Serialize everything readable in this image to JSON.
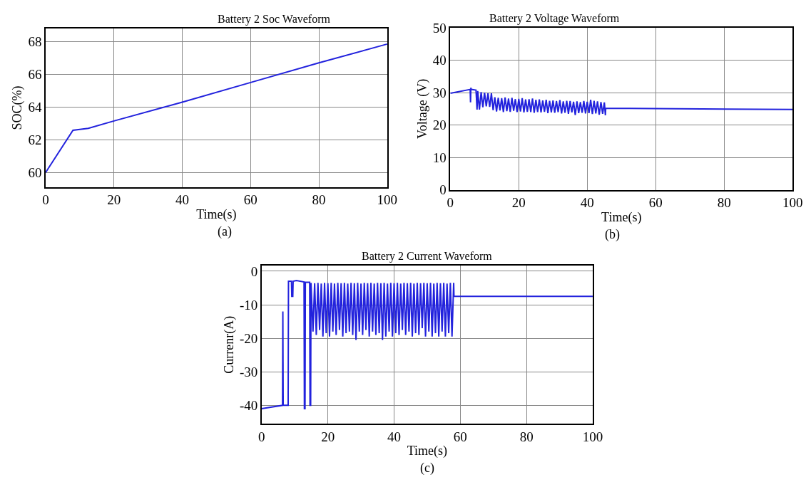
{
  "chart_data": [
    {
      "type": "line",
      "title": "Battery 2 Soc Waveform",
      "xlabel": "Time(s)",
      "ylabel": "SOC(%)",
      "annotations": [
        "(a)"
      ],
      "xlim": [
        0,
        100
      ],
      "ylim": [
        59.1,
        68.8
      ],
      "xticks": [
        0,
        20,
        40,
        60,
        80,
        100
      ],
      "yticks": [
        60,
        62,
        64,
        66,
        68
      ],
      "grid": true,
      "series": [
        {
          "color": "#2222dd",
          "x": [
            0,
            8,
            12.5,
            20,
            40,
            60,
            80,
            100
          ],
          "values": [
            60,
            62.58,
            62.7,
            63.15,
            64.3,
            65.5,
            66.7,
            67.85
          ]
        }
      ]
    },
    {
      "type": "line",
      "title": "Battery 2 Voltage Waveform",
      "xlabel": "Time(s)",
      "ylabel": "Voltage (V)",
      "annotations": [
        "(b)"
      ],
      "xlim": [
        0,
        100
      ],
      "ylim": [
        0,
        50
      ],
      "xticks": [
        0,
        20,
        40,
        60,
        80,
        100
      ],
      "yticks": [
        0,
        10,
        20,
        30,
        40,
        50
      ],
      "grid": true,
      "series": [
        {
          "color": "#2222dd",
          "x": [
            0,
            5.8,
            5.9,
            6,
            6.1,
            7.5,
            7.8,
            8,
            8.5,
            9,
            9.5,
            10,
            10.5,
            11,
            11.5,
            12,
            12.5,
            13,
            13.5,
            14,
            14.5,
            15,
            15.5,
            16,
            16.5,
            17,
            17.5,
            18,
            18.5,
            19,
            19.5,
            20,
            20.5,
            21,
            21.5,
            22,
            22.5,
            23,
            23.5,
            24,
            24.5,
            25,
            25.5,
            26,
            26.5,
            27,
            27.5,
            28,
            28.5,
            29,
            29.5,
            30,
            30.5,
            31,
            31.5,
            32,
            32.5,
            33,
            33.5,
            34,
            34.5,
            35,
            35.5,
            36,
            36.5,
            37,
            37.5,
            38,
            38.5,
            39,
            39.5,
            40,
            40.5,
            41,
            41.5,
            42,
            42.5,
            43,
            43.5,
            44,
            44.5,
            45,
            45.3,
            45.4,
            100
          ],
          "values": [
            29.8,
            31,
            27,
            31.5,
            31,
            30.8,
            24.8,
            30.5,
            24.8,
            30.2,
            25.5,
            30,
            25.8,
            29.8,
            25.6,
            29.8,
            24.6,
            28.6,
            24.2,
            28.4,
            24.5,
            28.3,
            24,
            28.5,
            24.3,
            28.2,
            24.1,
            28.4,
            24.4,
            28,
            24,
            28.1,
            24.2,
            28.3,
            23.9,
            27.9,
            24.1,
            28,
            24,
            28.2,
            23.8,
            27.8,
            24,
            27.9,
            23.9,
            27.6,
            24.1,
            27.8,
            23.7,
            27.5,
            23.9,
            27.6,
            23.8,
            27.4,
            24,
            27.7,
            23.6,
            27.3,
            23.8,
            27.5,
            23.5,
            27.4,
            23.9,
            27.2,
            23.1,
            27.3,
            23.7,
            27.1,
            23.8,
            27.4,
            23.6,
            27.2,
            23.7,
            27.8,
            23.4,
            27.5,
            23.6,
            27.3,
            23.2,
            27.1,
            23.5,
            27,
            23,
            25.2,
            24.8
          ]
        }
      ]
    },
    {
      "type": "line",
      "title": "Battery 2 Current Waveform",
      "xlabel": "Time(s)",
      "ylabel": "Currenr(A)",
      "annotations": [
        "(c)"
      ],
      "xlim": [
        0,
        100
      ],
      "ylim": [
        -45.5,
        1.6
      ],
      "xticks": [
        0,
        20,
        40,
        60,
        80,
        100
      ],
      "yticks": [
        -40,
        -30,
        -20,
        -10,
        0
      ],
      "grid": true,
      "series": [
        {
          "color": "#2222dd",
          "x": [
            0,
            6.3,
            6.4,
            6.5,
            8,
            8.1,
            9,
            9.1,
            9.4,
            9.5,
            10.5,
            12.8,
            12.9,
            13.1,
            13.2,
            14.5,
            14.6,
            14.8,
            14.9,
            15.5,
            16,
            16.5,
            17,
            17.5,
            18,
            18.5,
            19,
            19.5,
            20,
            20.5,
            21,
            21.5,
            22,
            22.5,
            23,
            23.5,
            24,
            24.5,
            25,
            25.5,
            26,
            26.5,
            27,
            27.5,
            28,
            28.5,
            29,
            29.5,
            30,
            30.5,
            31,
            31.5,
            32,
            32.5,
            33,
            33.5,
            34,
            34.5,
            35,
            35.5,
            36,
            36.5,
            37,
            37.5,
            38,
            38.5,
            39,
            39.5,
            40,
            40.5,
            41,
            41.5,
            42,
            42.5,
            43,
            43.5,
            44,
            44.5,
            45,
            45.5,
            46,
            46.5,
            47,
            47.5,
            48,
            48.5,
            49,
            49.5,
            50,
            50.5,
            51,
            51.5,
            52,
            52.5,
            53,
            53.5,
            54,
            54.5,
            55,
            55.5,
            56,
            56.5,
            57,
            57.5,
            58,
            58.1,
            100
          ],
          "values": [
            -41,
            -40,
            -12,
            -40,
            -40,
            -3,
            -3,
            -7.5,
            -7.5,
            -3,
            -2.8,
            -3.2,
            -41,
            -41,
            -3.3,
            -3.3,
            -40,
            -40,
            -3.5,
            -18,
            -3.6,
            -19,
            -3.5,
            -17.5,
            -3.7,
            -19.5,
            -3.5,
            -18.5,
            -3.6,
            -19.5,
            -3.5,
            -18,
            -3.7,
            -19,
            -3.5,
            -17.5,
            -3.6,
            -19.5,
            -3.5,
            -18.5,
            -3.7,
            -18,
            -3.5,
            -19,
            -3.6,
            -20.5,
            -3.5,
            -18,
            -3.7,
            -19,
            -3.5,
            -17.5,
            -3.6,
            -19.5,
            -3.5,
            -18,
            -3.7,
            -19,
            -3.5,
            -18.5,
            -3.6,
            -20.5,
            -3.5,
            -19.5,
            -3.7,
            -18,
            -3.5,
            -19.5,
            -3.6,
            -18.5,
            -3.5,
            -19,
            -3.7,
            -17.5,
            -3.5,
            -19,
            -3.6,
            -18,
            -3.5,
            -19.5,
            -3.7,
            -18.5,
            -3.5,
            -19,
            -3.6,
            -17,
            -3.5,
            -19.5,
            -3.6,
            -18,
            -3.5,
            -19.5,
            -3.7,
            -18.5,
            -3.5,
            -19.5,
            -3.6,
            -18,
            -3.5,
            -19.5,
            -3.7,
            -18.5,
            -3.5,
            -19.5,
            -3.5,
            -7.5,
            -7.5
          ]
        }
      ]
    }
  ]
}
